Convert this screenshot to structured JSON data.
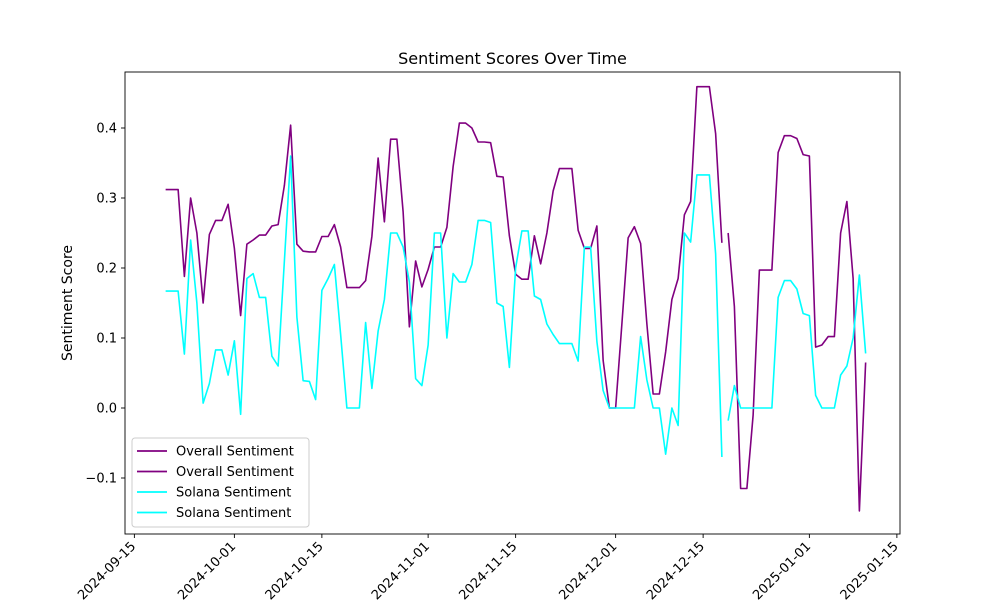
{
  "chart_data": {
    "type": "line",
    "title": "Sentiment Scores Over Time",
    "xlabel": "",
    "ylabel": "Sentiment Score",
    "xlim": [
      "2024-09-15",
      "2025-01-15"
    ],
    "ylim": [
      -0.18,
      0.48
    ],
    "x_ticks": [
      "2024-09-15",
      "2024-10-01",
      "2024-10-15",
      "2024-11-01",
      "2024-11-15",
      "2024-12-01",
      "2024-12-15",
      "2025-01-01",
      "2025-01-15"
    ],
    "y_ticks": [
      -0.1,
      0.0,
      0.1,
      0.2,
      0.3,
      0.4
    ],
    "y_tick_labels": [
      "−0.1",
      "0.0",
      "0.1",
      "0.2",
      "0.3",
      "0.4"
    ],
    "grid": false,
    "legend_position": "lower-left",
    "colors": {
      "overall": "#800080",
      "solana": "#00ffff"
    },
    "series": [
      {
        "name": "Overall Sentiment",
        "color": "#800080",
        "points": [
          [
            "2024-09-20",
            0.312
          ],
          [
            "2024-09-21",
            0.312
          ],
          [
            "2024-09-22",
            0.312
          ],
          [
            "2024-09-23",
            0.188
          ],
          [
            "2024-09-24",
            0.3
          ],
          [
            "2024-09-25",
            0.25
          ],
          [
            "2024-09-26",
            0.15
          ],
          [
            "2024-09-27",
            0.248
          ],
          [
            "2024-09-28",
            0.268
          ],
          [
            "2024-09-29",
            0.268
          ],
          [
            "2024-09-30",
            0.291
          ],
          [
            "2024-10-01",
            0.228
          ],
          [
            "2024-10-02",
            0.132
          ],
          [
            "2024-10-03",
            0.234
          ],
          [
            "2024-10-04",
            0.24
          ],
          [
            "2024-10-05",
            0.247
          ],
          [
            "2024-10-06",
            0.247
          ],
          [
            "2024-10-07",
            0.26
          ],
          [
            "2024-10-08",
            0.262
          ],
          [
            "2024-10-09",
            0.318
          ],
          [
            "2024-10-10",
            0.404
          ],
          [
            "2024-10-11",
            0.234
          ],
          [
            "2024-10-12",
            0.224
          ],
          [
            "2024-10-13",
            0.223
          ],
          [
            "2024-10-14",
            0.223
          ],
          [
            "2024-10-15",
            0.245
          ],
          [
            "2024-10-16",
            0.245
          ],
          [
            "2024-10-17",
            0.262
          ],
          [
            "2024-10-18",
            0.23
          ],
          [
            "2024-10-19",
            0.172
          ],
          [
            "2024-10-20",
            0.172
          ],
          [
            "2024-10-21",
            0.172
          ],
          [
            "2024-10-22",
            0.182
          ],
          [
            "2024-10-23",
            0.245
          ],
          [
            "2024-10-24",
            0.357
          ],
          [
            "2024-10-25",
            0.266
          ],
          [
            "2024-10-26",
            0.384
          ],
          [
            "2024-10-27",
            0.384
          ],
          [
            "2024-10-28",
            0.28
          ],
          [
            "2024-10-29",
            0.116
          ],
          [
            "2024-10-30",
            0.21
          ],
          [
            "2024-10-31",
            0.173
          ],
          [
            "2024-11-01",
            0.198
          ],
          [
            "2024-11-02",
            0.23
          ],
          [
            "2024-11-03",
            0.23
          ],
          [
            "2024-11-04",
            0.258
          ],
          [
            "2024-11-05",
            0.345
          ],
          [
            "2024-11-06",
            0.407
          ],
          [
            "2024-11-07",
            0.407
          ],
          [
            "2024-11-08",
            0.4
          ],
          [
            "2024-11-09",
            0.38
          ],
          [
            "2024-11-10",
            0.38
          ],
          [
            "2024-11-11",
            0.379
          ],
          [
            "2024-11-12",
            0.331
          ],
          [
            "2024-11-13",
            0.33
          ],
          [
            "2024-11-14",
            0.246
          ],
          [
            "2024-11-15",
            0.191
          ],
          [
            "2024-11-16",
            0.184
          ],
          [
            "2024-11-17",
            0.184
          ],
          [
            "2024-11-18",
            0.246
          ],
          [
            "2024-11-19",
            0.206
          ],
          [
            "2024-11-20",
            0.25
          ],
          [
            "2024-11-21",
            0.31
          ],
          [
            "2024-11-22",
            0.342
          ],
          [
            "2024-11-23",
            0.342
          ],
          [
            "2024-11-24",
            0.342
          ],
          [
            "2024-11-25",
            0.254
          ],
          [
            "2024-11-26",
            0.228
          ],
          [
            "2024-11-27",
            0.228
          ],
          [
            "2024-11-28",
            0.26
          ],
          [
            "2024-11-29",
            0.068
          ],
          [
            "2024-11-30",
            0.0
          ],
          [
            "2024-12-01",
            0.0
          ],
          [
            "2024-12-02",
            0.12
          ],
          [
            "2024-12-03",
            0.243
          ],
          [
            "2024-12-04",
            0.259
          ],
          [
            "2024-12-05",
            0.235
          ],
          [
            "2024-12-06",
            0.12
          ],
          [
            "2024-12-07",
            0.02
          ],
          [
            "2024-12-08",
            0.02
          ],
          [
            "2024-12-09",
            0.08
          ],
          [
            "2024-12-10",
            0.155
          ],
          [
            "2024-12-11",
            0.185
          ],
          [
            "2024-12-12",
            0.276
          ],
          [
            "2024-12-13",
            0.295
          ],
          [
            "2024-12-14",
            0.459
          ],
          [
            "2024-12-15",
            0.459
          ],
          [
            "2024-12-16",
            0.459
          ],
          [
            "2024-12-17",
            0.392
          ],
          [
            "2024-12-18",
            0.236
          ]
        ]
      },
      {
        "name": "Overall Sentiment",
        "color": "#800080",
        "points": [
          [
            "2024-12-19",
            0.25
          ],
          [
            "2024-12-20",
            0.145
          ],
          [
            "2024-12-21",
            -0.115
          ],
          [
            "2024-12-22",
            -0.115
          ],
          [
            "2024-12-23",
            -0.01
          ],
          [
            "2024-12-24",
            0.197
          ],
          [
            "2024-12-25",
            0.197
          ],
          [
            "2024-12-26",
            0.197
          ],
          [
            "2024-12-27",
            0.365
          ],
          [
            "2024-12-28",
            0.389
          ],
          [
            "2024-12-29",
            0.389
          ],
          [
            "2024-12-30",
            0.385
          ],
          [
            "2024-12-31",
            0.362
          ],
          [
            "2025-01-01",
            0.36
          ],
          [
            "2025-01-02",
            0.087
          ],
          [
            "2025-01-03",
            0.09
          ],
          [
            "2025-01-04",
            0.102
          ],
          [
            "2025-01-05",
            0.102
          ],
          [
            "2025-01-06",
            0.25
          ],
          [
            "2025-01-07",
            0.295
          ],
          [
            "2025-01-08",
            0.185
          ],
          [
            "2025-01-09",
            -0.147
          ],
          [
            "2025-01-10",
            0.065
          ]
        ]
      },
      {
        "name": "Solana Sentiment",
        "color": "#00ffff",
        "points": [
          [
            "2024-09-20",
            0.167
          ],
          [
            "2024-09-21",
            0.167
          ],
          [
            "2024-09-22",
            0.167
          ],
          [
            "2024-09-23",
            0.077
          ],
          [
            "2024-09-24",
            0.24
          ],
          [
            "2024-09-25",
            0.15
          ],
          [
            "2024-09-26",
            0.007
          ],
          [
            "2024-09-27",
            0.035
          ],
          [
            "2024-09-28",
            0.083
          ],
          [
            "2024-09-29",
            0.083
          ],
          [
            "2024-09-30",
            0.047
          ],
          [
            "2024-10-01",
            0.096
          ],
          [
            "2024-10-02",
            -0.009
          ],
          [
            "2024-10-03",
            0.185
          ],
          [
            "2024-10-04",
            0.192
          ],
          [
            "2024-10-05",
            0.158
          ],
          [
            "2024-10-06",
            0.158
          ],
          [
            "2024-10-07",
            0.074
          ],
          [
            "2024-10-08",
            0.06
          ],
          [
            "2024-10-09",
            0.21
          ],
          [
            "2024-10-10",
            0.36
          ],
          [
            "2024-10-11",
            0.13
          ],
          [
            "2024-10-12",
            0.039
          ],
          [
            "2024-10-13",
            0.038
          ],
          [
            "2024-10-14",
            0.012
          ],
          [
            "2024-10-15",
            0.168
          ],
          [
            "2024-10-16",
            0.185
          ],
          [
            "2024-10-17",
            0.205
          ],
          [
            "2024-10-18",
            0.105
          ],
          [
            "2024-10-19",
            0.0
          ],
          [
            "2024-10-20",
            0.0
          ],
          [
            "2024-10-21",
            0.0
          ],
          [
            "2024-10-22",
            0.122
          ],
          [
            "2024-10-23",
            0.028
          ],
          [
            "2024-10-24",
            0.11
          ],
          [
            "2024-10-25",
            0.155
          ],
          [
            "2024-10-26",
            0.25
          ],
          [
            "2024-10-27",
            0.25
          ],
          [
            "2024-10-28",
            0.23
          ],
          [
            "2024-10-29",
            0.18
          ],
          [
            "2024-10-30",
            0.042
          ],
          [
            "2024-10-31",
            0.032
          ],
          [
            "2024-11-01",
            0.09
          ],
          [
            "2024-11-02",
            0.25
          ],
          [
            "2024-11-03",
            0.25
          ],
          [
            "2024-11-04",
            0.1
          ],
          [
            "2024-11-05",
            0.192
          ],
          [
            "2024-11-06",
            0.18
          ],
          [
            "2024-11-07",
            0.18
          ],
          [
            "2024-11-08",
            0.205
          ],
          [
            "2024-11-09",
            0.268
          ],
          [
            "2024-11-10",
            0.268
          ],
          [
            "2024-11-11",
            0.265
          ],
          [
            "2024-11-12",
            0.15
          ],
          [
            "2024-11-13",
            0.145
          ],
          [
            "2024-11-14",
            0.058
          ],
          [
            "2024-11-15",
            0.2
          ],
          [
            "2024-11-16",
            0.253
          ],
          [
            "2024-11-17",
            0.253
          ],
          [
            "2024-11-18",
            0.16
          ],
          [
            "2024-11-19",
            0.155
          ],
          [
            "2024-11-20",
            0.12
          ],
          [
            "2024-11-21",
            0.105
          ],
          [
            "2024-11-22",
            0.092
          ],
          [
            "2024-11-23",
            0.092
          ],
          [
            "2024-11-24",
            0.092
          ],
          [
            "2024-11-25",
            0.067
          ],
          [
            "2024-11-26",
            0.23
          ],
          [
            "2024-11-27",
            0.23
          ],
          [
            "2024-11-28",
            0.095
          ],
          [
            "2024-11-29",
            0.025
          ],
          [
            "2024-11-30",
            0.0
          ],
          [
            "2024-12-01",
            0.0
          ],
          [
            "2024-12-02",
            0.0
          ],
          [
            "2024-12-03",
            0.0
          ],
          [
            "2024-12-04",
            0.0
          ],
          [
            "2024-12-05",
            0.102
          ],
          [
            "2024-12-06",
            0.04
          ],
          [
            "2024-12-07",
            0.0
          ],
          [
            "2024-12-08",
            0.0
          ],
          [
            "2024-12-09",
            -0.066
          ],
          [
            "2024-12-10",
            0.0
          ],
          [
            "2024-12-11",
            -0.025
          ],
          [
            "2024-12-12",
            0.25
          ],
          [
            "2024-12-13",
            0.237
          ],
          [
            "2024-12-14",
            0.333
          ],
          [
            "2024-12-15",
            0.333
          ],
          [
            "2024-12-16",
            0.333
          ],
          [
            "2024-12-17",
            0.22
          ],
          [
            "2024-12-18",
            -0.07
          ]
        ]
      },
      {
        "name": "Solana Sentiment",
        "color": "#00ffff",
        "points": [
          [
            "2024-12-19",
            -0.018
          ],
          [
            "2024-12-20",
            0.032
          ],
          [
            "2024-12-21",
            0.0
          ],
          [
            "2024-12-22",
            0.0
          ],
          [
            "2024-12-23",
            0.0
          ],
          [
            "2024-12-24",
            0.0
          ],
          [
            "2024-12-25",
            0.0
          ],
          [
            "2024-12-26",
            0.0
          ],
          [
            "2024-12-27",
            0.158
          ],
          [
            "2024-12-28",
            0.182
          ],
          [
            "2024-12-29",
            0.182
          ],
          [
            "2024-12-30",
            0.17
          ],
          [
            "2024-12-31",
            0.135
          ],
          [
            "2025-01-01",
            0.132
          ],
          [
            "2025-01-02",
            0.018
          ],
          [
            "2025-01-03",
            0.0
          ],
          [
            "2025-01-04",
            0.0
          ],
          [
            "2025-01-05",
            0.0
          ],
          [
            "2025-01-06",
            0.047
          ],
          [
            "2025-01-07",
            0.06
          ],
          [
            "2025-01-08",
            0.1
          ],
          [
            "2025-01-09",
            0.19
          ],
          [
            "2025-01-10",
            0.078
          ]
        ]
      }
    ]
  }
}
